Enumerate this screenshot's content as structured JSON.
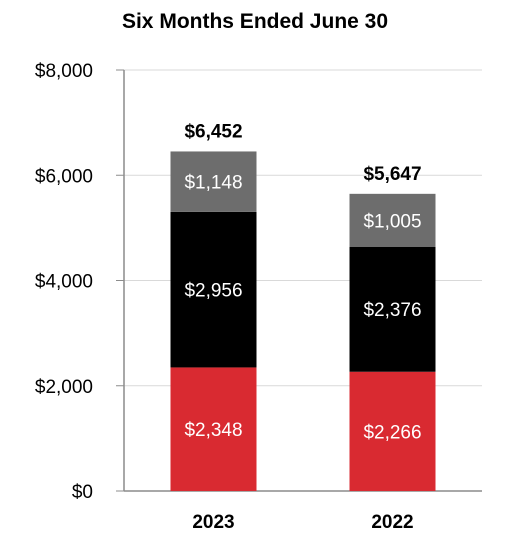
{
  "chart_data": {
    "type": "bar",
    "stacked": true,
    "title": "Six Months Ended June 30",
    "categories": [
      "2023",
      "2022"
    ],
    "series": [
      {
        "values": [
          2348,
          2266
        ],
        "labels": [
          "$2,348",
          "$2,266"
        ],
        "color": "#d92a31"
      },
      {
        "values": [
          2956,
          2376
        ],
        "labels": [
          "$2,956",
          "$2,376"
        ],
        "color": "#000000"
      },
      {
        "values": [
          1148,
          1005
        ],
        "labels": [
          "$1,148",
          "$1,005"
        ],
        "color": "#6d6d6d"
      }
    ],
    "totals": [
      "$6,452",
      "$5,647"
    ],
    "total_values": [
      6452,
      5647
    ],
    "ylim": [
      0,
      8000
    ],
    "yticks": [
      0,
      2000,
      4000,
      6000,
      8000
    ],
    "ytick_labels": [
      "$0",
      "$2,000",
      "$4,000",
      "$6,000",
      "$8,000"
    ],
    "grid": true
  }
}
